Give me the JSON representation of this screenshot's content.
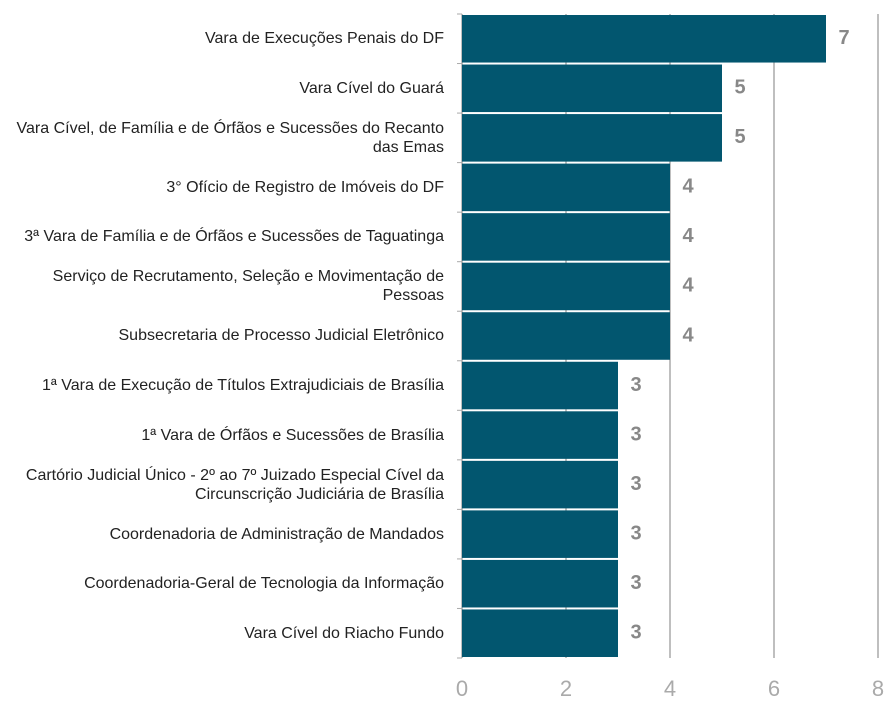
{
  "chart_data": {
    "type": "barh",
    "categories": [
      "Vara de Execuções Penais do DF",
      "Vara Cível do Guará",
      "Vara Cível, de Família e de Órfãos e Sucessões do Recanto das Emas",
      "3° Ofício de Registro de Imóveis do DF",
      "3ª Vara de Família e de Órfãos e Sucessões de Taguatinga",
      "Serviço de Recrutamento, Seleção e Movimentação de Pessoas",
      "Subsecretaria de Processo Judicial Eletrônico",
      "1ª Vara de Execução de Títulos Extrajudiciais de Brasília",
      "1ª Vara de Órfãos e Sucessões de Brasília",
      "Cartório Judicial Único - 2º ao 7º Juizado Especial Cível da Circunscrição Judiciária de Brasília",
      "Coordenadoria de Administração de Mandados",
      "Coordenadoria-Geral de Tecnologia da Informação",
      "Vara Cível do Riacho Fundo"
    ],
    "values": [
      7,
      5,
      5,
      4,
      4,
      4,
      4,
      3,
      3,
      3,
      3,
      3,
      3
    ],
    "color": "#02566f",
    "xlim": [
      0,
      8
    ],
    "xticks": [
      0,
      2,
      4,
      6,
      8
    ],
    "grid": true
  }
}
